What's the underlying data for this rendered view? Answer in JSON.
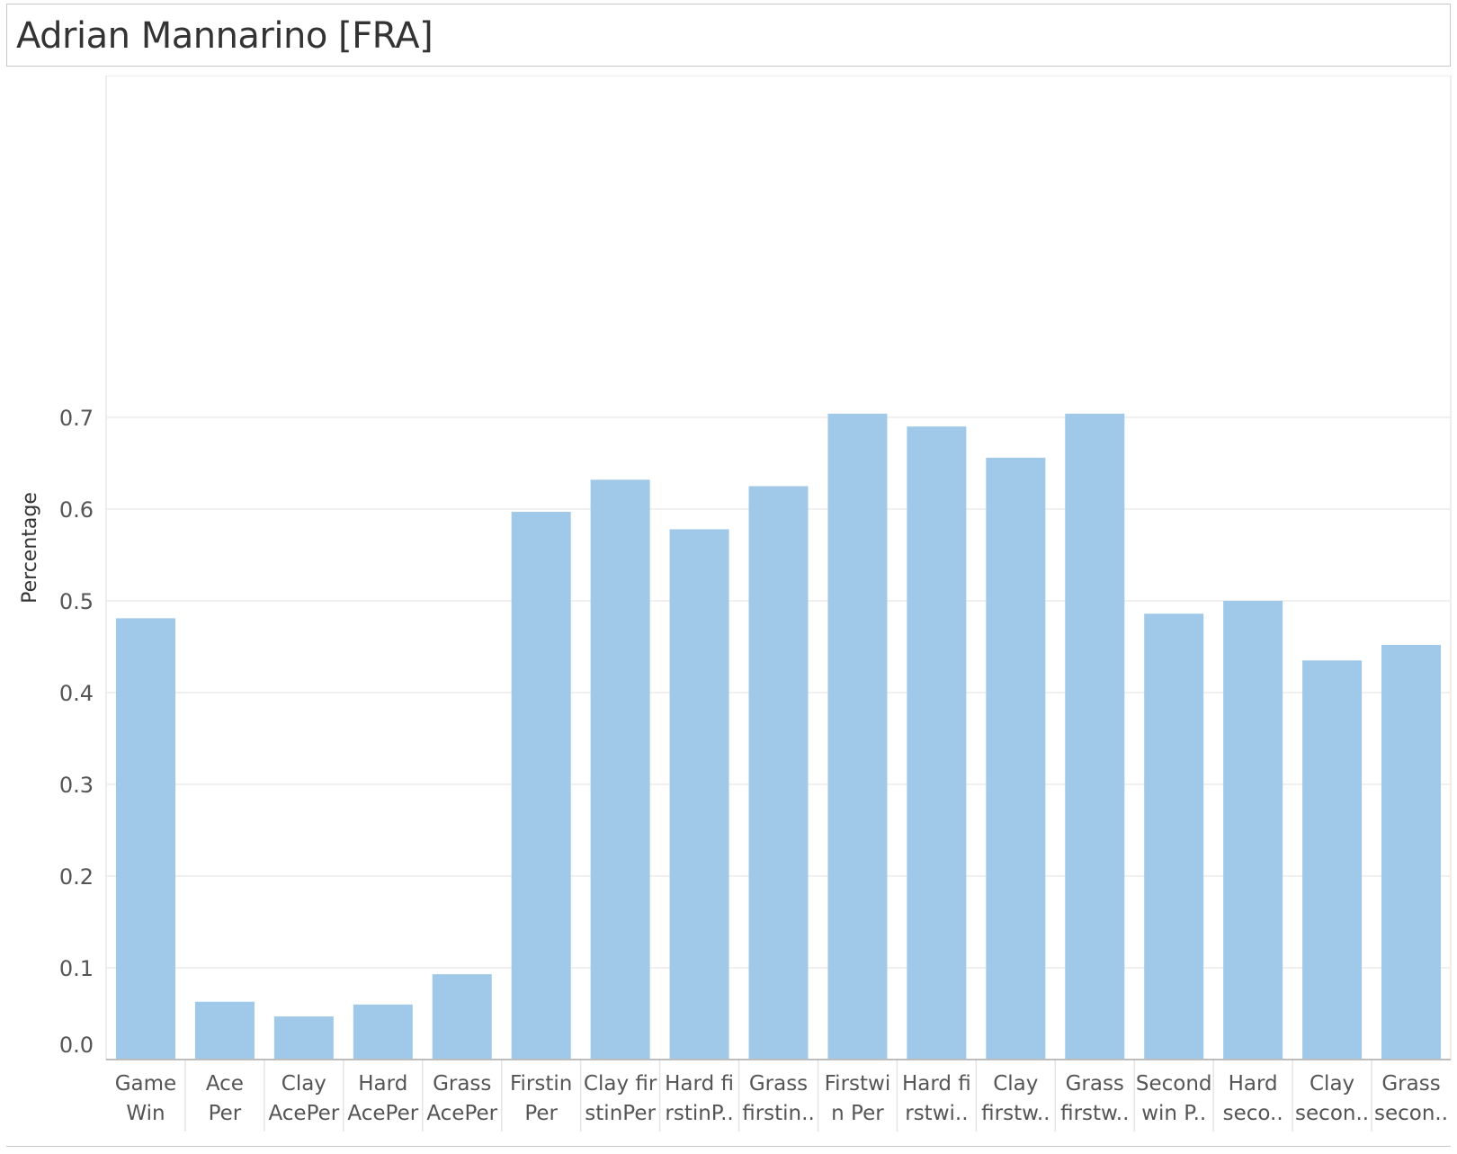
{
  "header": {
    "title": "Adrian Mannarino [FRA]"
  },
  "colors": {
    "bar": "#a0c8e8",
    "grid": "#ececec",
    "axis": "#bdbdbd",
    "text": "#555555"
  },
  "chart_data": {
    "type": "bar",
    "title": "Adrian Mannarino [FRA]",
    "xlabel": "",
    "ylabel": "Percentage",
    "ylim": [
      0,
      0.7
    ],
    "yticks": [
      "0.0",
      "0.1",
      "0.2",
      "0.3",
      "0.4",
      "0.5",
      "0.6",
      "0.7"
    ],
    "grid": true,
    "categories": [
      [
        "Game",
        "Win"
      ],
      [
        "Ace",
        "Per"
      ],
      [
        "Clay",
        "AcePer"
      ],
      [
        "Hard",
        "AcePer"
      ],
      [
        "Grass",
        "AcePer"
      ],
      [
        "Firstin",
        "Per"
      ],
      [
        "Clay fir",
        "stinPer"
      ],
      [
        "Hard fi",
        "rstinP.."
      ],
      [
        "Grass",
        "firstin.."
      ],
      [
        "Firstwi",
        "n Per"
      ],
      [
        "Hard fi",
        "rstwi.."
      ],
      [
        "Clay",
        "firstw.."
      ],
      [
        "Grass",
        "firstw.."
      ],
      [
        "Second",
        "win P.."
      ],
      [
        "Hard",
        "seco.."
      ],
      [
        "Clay",
        "secon.."
      ],
      [
        "Grass",
        "secon.."
      ]
    ],
    "values": [
      0.481,
      0.063,
      0.047,
      0.06,
      0.093,
      0.597,
      0.632,
      0.578,
      0.625,
      0.704,
      0.69,
      0.656,
      0.704,
      0.486,
      0.5,
      0.435,
      0.452
    ]
  }
}
